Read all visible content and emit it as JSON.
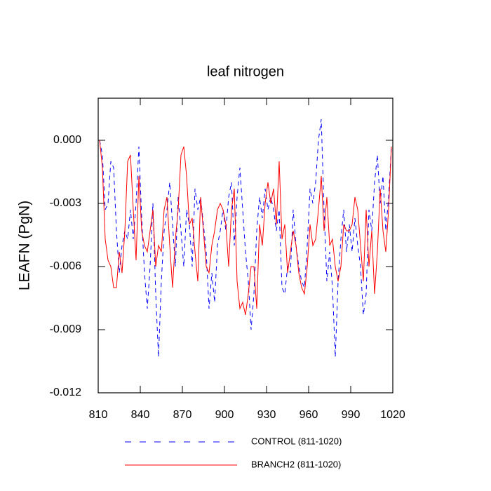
{
  "chart_data": {
    "type": "line",
    "title": "leaf nitrogen",
    "y_label": "LEAFN  (PgN)",
    "x": [
      811,
      813,
      815,
      817,
      819,
      821,
      823,
      825,
      827,
      829,
      831,
      833,
      835,
      837,
      839,
      841,
      843,
      845,
      847,
      849,
      851,
      853,
      855,
      857,
      859,
      861,
      863,
      865,
      867,
      869,
      871,
      873,
      875,
      877,
      879,
      881,
      883,
      885,
      887,
      889,
      891,
      893,
      895,
      897,
      899,
      901,
      903,
      905,
      907,
      909,
      911,
      913,
      915,
      917,
      919,
      921,
      923,
      925,
      927,
      929,
      931,
      933,
      935,
      937,
      939,
      941,
      943,
      945,
      947,
      949,
      951,
      953,
      955,
      957,
      959,
      961,
      963,
      965,
      967,
      969,
      971,
      973,
      975,
      977,
      979,
      981,
      983,
      985,
      987,
      989,
      991,
      993,
      995,
      997,
      999,
      1001,
      1003,
      1005,
      1007,
      1009,
      1011,
      1013,
      1015,
      1017,
      1019
    ],
    "series": [
      {
        "name": "CONTROL (811-1020)",
        "color": "#0000ff",
        "dash": true,
        "values": [
          0,
          -0.0007,
          -0.0033,
          -0.003,
          -0.001,
          -0.0013,
          -0.0043,
          -0.0063,
          -0.005,
          -0.0043,
          -0.0047,
          -0.0033,
          -0.0047,
          -0.003,
          -0.0003,
          -0.0037,
          -0.0063,
          -0.008,
          -0.006,
          -0.003,
          -0.0073,
          -0.0103,
          -0.0067,
          -0.0043,
          -0.0033,
          -0.002,
          -0.004,
          -0.006,
          -0.0027,
          -0.0043,
          -0.006,
          -0.0033,
          -0.004,
          -0.006,
          -0.0023,
          -0.0033,
          -0.0027,
          -0.004,
          -0.0053,
          -0.008,
          -0.0063,
          -0.0077,
          -0.005,
          -0.0043,
          -0.0033,
          -0.0043,
          -0.0027,
          -0.002,
          -0.005,
          -0.0027,
          -0.0013,
          -0.0033,
          -0.0053,
          -0.0067,
          -0.009,
          -0.0073,
          -0.0043,
          -0.0027,
          -0.0037,
          -0.0023,
          -0.0033,
          -0.0027,
          -0.0033,
          -0.0043,
          -0.0033,
          -0.007,
          -0.0073,
          -0.006,
          -0.0063,
          -0.0033,
          -0.005,
          -0.006,
          -0.0067,
          -0.007,
          -0.005,
          -0.0023,
          -0.003,
          -0.002,
          0,
          0.001,
          -0.0033,
          -0.0067,
          -0.0053,
          -0.007,
          -0.0103,
          -0.0067,
          -0.0047,
          -0.0033,
          -0.0053,
          -0.004,
          -0.0053,
          -0.0037,
          -0.005,
          -0.006,
          -0.0083,
          -0.0073,
          -0.0033,
          -0.0043,
          -0.002,
          -0.0007,
          -0.003,
          -0.0017,
          -0.0043,
          -0.0027,
          -0.0003
        ]
      },
      {
        "name": "BRANCH2 (811-1020)",
        "color": "#ff0000",
        "dash": false,
        "values": [
          0,
          -0.0013,
          -0.0047,
          -0.0057,
          -0.006,
          -0.007,
          -0.007,
          -0.0053,
          -0.0063,
          -0.0043,
          -0.001,
          -0.0007,
          -0.0033,
          -0.0057,
          -0.0017,
          -0.0043,
          -0.005,
          -0.0053,
          -0.0043,
          -0.0033,
          -0.006,
          -0.005,
          -0.0053,
          -0.0033,
          -0.0027,
          -0.005,
          -0.007,
          -0.0047,
          -0.0033,
          -0.0007,
          -0.0003,
          -0.0017,
          -0.004,
          -0.0037,
          -0.0053,
          -0.0067,
          -0.0027,
          -0.0043,
          -0.006,
          -0.0063,
          -0.005,
          -0.0043,
          -0.0033,
          -0.003,
          -0.0033,
          -0.004,
          -0.006,
          -0.0033,
          -0.0023,
          -0.0067,
          -0.008,
          -0.0077,
          -0.0083,
          -0.0073,
          -0.006,
          -0.006,
          -0.008,
          -0.004,
          -0.005,
          -0.003,
          -0.002,
          -0.003,
          -0.0023,
          -0.004,
          -0.001,
          -0.0047,
          -0.004,
          -0.0063,
          -0.0053,
          -0.0043,
          -0.005,
          -0.0063,
          -0.007,
          -0.0073,
          -0.006,
          -0.004,
          -0.005,
          -0.0047,
          -0.0033,
          -0.0017,
          -0.0043,
          -0.0027,
          -0.005,
          -0.0047,
          -0.006,
          -0.0067,
          -0.006,
          -0.004,
          -0.0043,
          -0.0043,
          -0.004,
          -0.0027,
          -0.0033,
          -0.005,
          -0.0067,
          -0.0033,
          -0.006,
          -0.0043,
          -0.0073,
          -0.0053,
          -0.0023,
          -0.0043,
          -0.0053,
          -0.0033,
          -0.0003
        ]
      }
    ],
    "xlim": [
      810,
      1020
    ],
    "xticks": [
      810,
      840,
      870,
      900,
      930,
      960,
      990,
      1020
    ],
    "ylim": [
      -0.012,
      0.002
    ],
    "yticks": [
      {
        "value": -0.012,
        "label": "-0.012"
      },
      {
        "value": -0.009,
        "label": "-0.009"
      },
      {
        "value": -0.006,
        "label": "-0.006"
      },
      {
        "value": -0.003,
        "label": "-0.003"
      },
      {
        "value": 0,
        "label": "0.000"
      }
    ]
  }
}
